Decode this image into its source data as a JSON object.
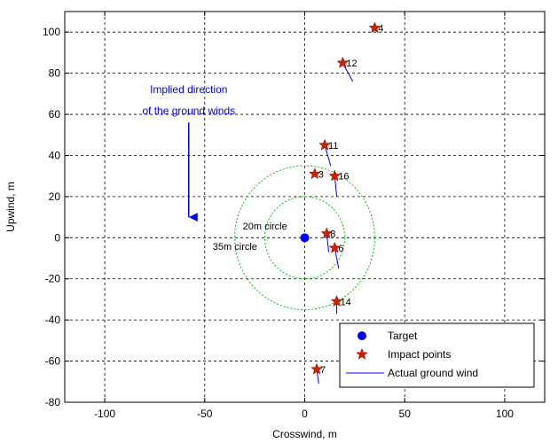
{
  "chart_data": {
    "type": "scatter",
    "xlabel": "Crosswind, m",
    "ylabel": "Upwind, m",
    "xlim": [
      -120,
      120
    ],
    "ylim": [
      -80,
      110
    ],
    "xticks": [
      -100,
      -50,
      0,
      50,
      100
    ],
    "yticks": [
      -80,
      -60,
      -40,
      -20,
      0,
      20,
      40,
      60,
      80,
      100
    ],
    "grid": true,
    "legend_position": "bottom-right",
    "legend": [
      {
        "label": "Target",
        "marker": "circle",
        "color": "#0000ff"
      },
      {
        "label": "Impact points",
        "marker": "star",
        "color": "#cc2200"
      },
      {
        "label": "Actual ground wind",
        "marker": "line",
        "color": "#0000ff"
      }
    ],
    "target": {
      "x": 0,
      "y": 0
    },
    "circles": [
      {
        "radius": 20,
        "label": "20m circle",
        "color": "#00cc00"
      },
      {
        "radius": 35,
        "label": "35m circle",
        "color": "#00cc00"
      }
    ],
    "impact_points": [
      {
        "id": "4",
        "x": 35,
        "y": 102,
        "wind_dx": 0,
        "wind_dy": 0
      },
      {
        "id": "12",
        "x": 19,
        "y": 85,
        "wind_dx": 5,
        "wind_dy": -9
      },
      {
        "id": "11",
        "x": 10,
        "y": 45,
        "wind_dx": 3,
        "wind_dy": -10
      },
      {
        "id": "3",
        "x": 5,
        "y": 31,
        "wind_dx": 0,
        "wind_dy": 0
      },
      {
        "id": "16",
        "x": 15,
        "y": 30,
        "wind_dx": 1,
        "wind_dy": -10
      },
      {
        "id": "8",
        "x": 11,
        "y": 2,
        "wind_dx": 1,
        "wind_dy": -9
      },
      {
        "id": "6",
        "x": 15,
        "y": -5,
        "wind_dx": 2,
        "wind_dy": -10
      },
      {
        "id": "14",
        "x": 16,
        "y": -31,
        "wind_dx": 0,
        "wind_dy": -6
      },
      {
        "id": "7",
        "x": 6,
        "y": -64,
        "wind_dx": 1,
        "wind_dy": -7
      }
    ],
    "annotation": {
      "text_lines": [
        "Implied direction",
        "of the ground winds"
      ],
      "color": "#0000ff",
      "arrow_from": {
        "x": -58,
        "y": 56
      },
      "arrow_to": {
        "x": -58,
        "y": 10
      }
    }
  }
}
